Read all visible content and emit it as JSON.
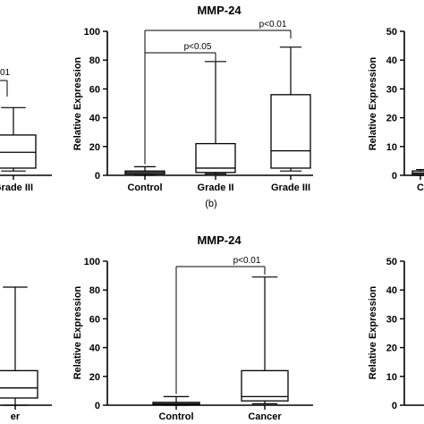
{
  "colors": {
    "ink": "#000000",
    "background": "#ffffff"
  },
  "chart_data": [
    {
      "id": "top-center",
      "type": "boxplot",
      "title": "MMP-24",
      "ylabel": "Relative Expression",
      "ylim": [
        0,
        100
      ],
      "yticks": [
        0,
        20,
        40,
        60,
        80,
        100
      ],
      "categories": [
        "Control",
        "Grade II",
        "Grade III"
      ],
      "boxes": [
        {
          "category": "Control",
          "min": 0,
          "q1": 1,
          "median": 2,
          "q3": 3,
          "max": 6
        },
        {
          "category": "Grade II",
          "min": 1,
          "q1": 2,
          "median": 5,
          "q3": 22,
          "max": 79
        },
        {
          "category": "Grade III",
          "min": 3,
          "q1": 5,
          "median": 17,
          "q3": 56,
          "max": 89
        }
      ],
      "annotations": [
        {
          "label": "p<0.05",
          "from": "Control",
          "to": "Grade II"
        },
        {
          "label": "p<0.01",
          "from": "Control",
          "to": "Grade III"
        }
      ],
      "caption": "(b)"
    },
    {
      "id": "bottom-center",
      "type": "boxplot",
      "title": "MMP-24",
      "ylabel": "Relative Expression",
      "ylim": [
        0,
        100
      ],
      "yticks": [
        0,
        20,
        40,
        60,
        80,
        100
      ],
      "categories": [
        "Control",
        "Cancer"
      ],
      "boxes": [
        {
          "category": "Control",
          "min": 0,
          "q1": 0.5,
          "median": 1,
          "q3": 2,
          "max": 6
        },
        {
          "category": "Cancer",
          "min": 1,
          "q1": 3,
          "median": 6,
          "q3": 24,
          "max": 89
        }
      ],
      "annotations": [
        {
          "label": "p<0.01",
          "from": "Control",
          "to": "Cancer"
        }
      ]
    },
    {
      "id": "top-left-partial",
      "type": "boxplot",
      "partial": true,
      "categories": [
        "Grade III"
      ],
      "boxes": [
        {
          "category": "Grade III",
          "min": 3,
          "q1": 5,
          "median": 16,
          "q3": 28,
          "max": 47
        }
      ],
      "annotation_fragment": "01"
    },
    {
      "id": "bottom-left-partial",
      "type": "boxplot",
      "partial": true,
      "categories": [
        "er"
      ],
      "boxes": [
        {
          "category": "er",
          "min": 0,
          "q1": 5,
          "median": 12,
          "q3": 24,
          "max": 82
        }
      ]
    },
    {
      "id": "top-right-partial",
      "type": "boxplot",
      "partial": true,
      "ylim": [
        0,
        50
      ],
      "yticks": [
        0,
        10,
        20,
        30,
        40,
        50
      ],
      "ylabel": "Relative Expression",
      "categories": [
        "C"
      ],
      "boxes": [
        {
          "category": "C",
          "min": 0,
          "q1": 0.3,
          "median": 0.8,
          "q3": 1.5,
          "max": 2
        }
      ]
    },
    {
      "id": "bottom-right-partial",
      "type": "boxplot",
      "partial": true,
      "ylim": [
        0,
        50
      ],
      "yticks": [
        0,
        10,
        20,
        30,
        40,
        50
      ],
      "ylabel": "Relative Expression",
      "categories": [],
      "boxes": []
    }
  ]
}
